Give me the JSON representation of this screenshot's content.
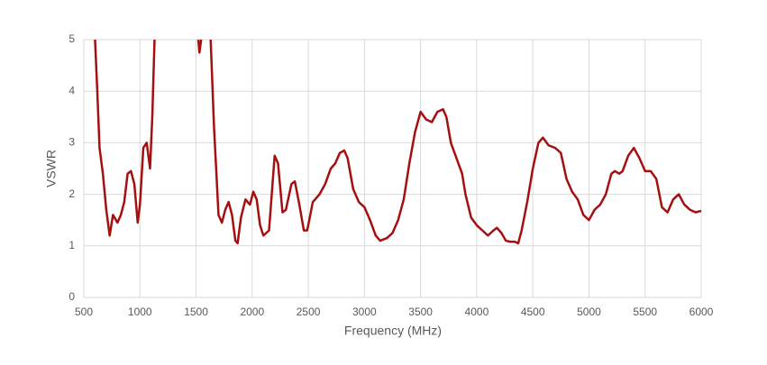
{
  "chart_data": {
    "type": "line",
    "x_label": "Frequency (MHz)",
    "y_label": "VSWR",
    "x": [
      600,
      620,
      640,
      670,
      700,
      730,
      760,
      800,
      830,
      860,
      890,
      920,
      950,
      980,
      1000,
      1030,
      1060,
      1090,
      1110,
      1130,
      1330,
      1520,
      1530,
      1545,
      1590,
      1630,
      1660,
      1700,
      1730,
      1760,
      1790,
      1820,
      1850,
      1870,
      1900,
      1940,
      1980,
      2010,
      2040,
      2070,
      2100,
      2150,
      2200,
      2230,
      2270,
      2300,
      2350,
      2380,
      2420,
      2460,
      2490,
      2540,
      2600,
      2650,
      2700,
      2740,
      2780,
      2820,
      2850,
      2900,
      2950,
      3000,
      3050,
      3100,
      3140,
      3200,
      3250,
      3300,
      3350,
      3400,
      3450,
      3500,
      3550,
      3600,
      3650,
      3700,
      3730,
      3770,
      3820,
      3870,
      3900,
      3950,
      4000,
      4050,
      4100,
      4150,
      4180,
      4220,
      4260,
      4300,
      4340,
      4370,
      4400,
      4450,
      4500,
      4550,
      4590,
      4640,
      4700,
      4750,
      4800,
      4850,
      4900,
      4950,
      5000,
      5050,
      5100,
      5150,
      5200,
      5230,
      5270,
      5300,
      5350,
      5400,
      5450,
      5500,
      5550,
      5600,
      5650,
      5700,
      5750,
      5800,
      5850,
      5900,
      5950,
      6000
    ],
    "series": [
      {
        "name": "VSWR",
        "color": "#a50f0f",
        "values": [
          5.0,
          4.0,
          2.9,
          2.4,
          1.7,
          1.2,
          1.6,
          1.45,
          1.6,
          1.85,
          2.4,
          2.45,
          2.2,
          1.45,
          1.8,
          2.9,
          3.0,
          2.5,
          3.5,
          5.0,
          null,
          5.0,
          4.75,
          5.0,
          null,
          5.0,
          3.3,
          1.6,
          1.45,
          1.7,
          1.85,
          1.6,
          1.1,
          1.05,
          1.55,
          1.9,
          1.8,
          2.05,
          1.9,
          1.4,
          1.2,
          1.3,
          2.75,
          2.6,
          1.65,
          1.7,
          2.2,
          2.25,
          1.8,
          1.3,
          1.3,
          1.85,
          2.0,
          2.2,
          2.5,
          2.6,
          2.8,
          2.85,
          2.7,
          2.1,
          1.85,
          1.75,
          1.5,
          1.2,
          1.1,
          1.15,
          1.25,
          1.5,
          1.9,
          2.6,
          3.2,
          3.6,
          3.45,
          3.4,
          3.6,
          3.65,
          3.5,
          3.0,
          2.7,
          2.4,
          2.0,
          1.55,
          1.4,
          1.3,
          1.2,
          1.3,
          1.35,
          1.25,
          1.1,
          1.08,
          1.08,
          1.05,
          1.3,
          1.85,
          2.5,
          3.0,
          3.1,
          2.95,
          2.9,
          2.8,
          2.3,
          2.05,
          1.9,
          1.6,
          1.5,
          1.7,
          1.8,
          2.0,
          2.4,
          2.45,
          2.4,
          2.45,
          2.75,
          2.9,
          2.7,
          2.45,
          2.45,
          2.3,
          1.75,
          1.65,
          1.9,
          2.0,
          1.8,
          1.7,
          1.65,
          1.68
        ]
      }
    ],
    "xlim": [
      500,
      6000
    ],
    "xticks": [
      500,
      1000,
      1500,
      2000,
      2500,
      3000,
      3500,
      4000,
      4500,
      5000,
      5500,
      6000
    ],
    "ylim": [
      0,
      5
    ],
    "yticks": [
      0,
      1,
      2,
      3,
      4,
      5
    ],
    "grid": true
  }
}
